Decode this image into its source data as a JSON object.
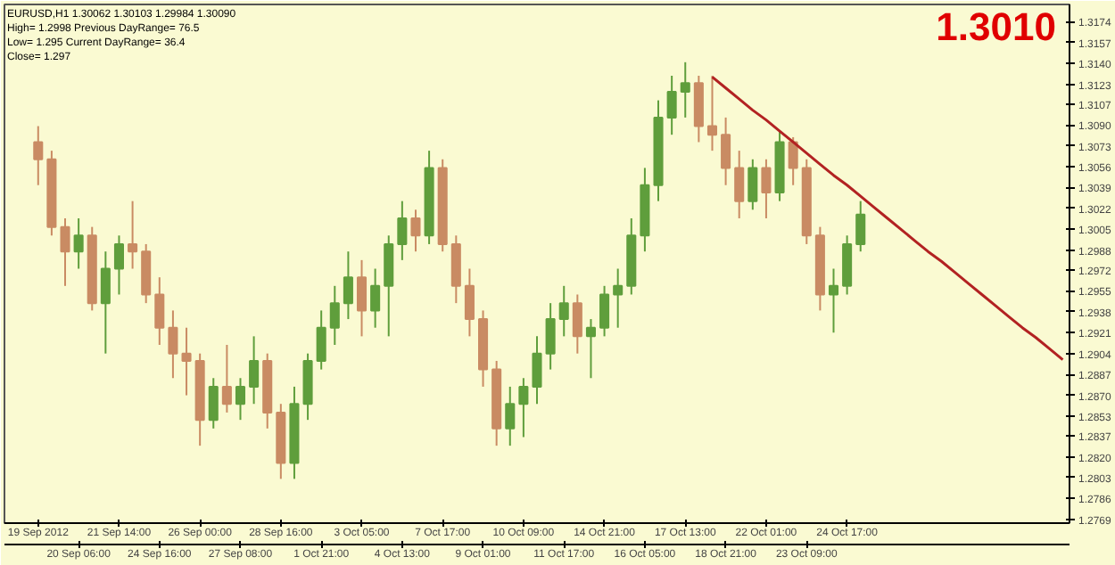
{
  "chart_data": {
    "type": "candlestick",
    "title": "1.3010",
    "annotations": [
      "EURUSD,H1 1.30062 1.30103 1.29984 1.30090",
      "High= 1.2998 Previous DayRange= 76.5",
      "Low= 1.295 Current DayRange= 36.4",
      "Close= 1.297"
    ],
    "categories": [
      "19 Sep 2012",
      null,
      null,
      "20 Sep 06:00",
      null,
      null,
      "21 Sep 14:00",
      null,
      null,
      "24 Sep 16:00",
      null,
      null,
      "26 Sep 00:00",
      null,
      null,
      "27 Sep 08:00",
      null,
      null,
      "28 Sep 16:00",
      null,
      null,
      "1 Oct 21:00",
      null,
      null,
      "3 Oct 05:00",
      null,
      null,
      "4 Oct 13:00",
      null,
      null,
      "7 Oct 17:00",
      null,
      null,
      "9 Oct 01:00",
      null,
      null,
      "10 Oct 09:00",
      null,
      null,
      "11 Oct 17:00",
      null,
      null,
      "14 Oct 21:00",
      null,
      null,
      "16 Oct 05:00",
      null,
      null,
      "17 Oct 13:00",
      null,
      null,
      "18 Oct 21:00",
      null,
      null,
      "22 Oct 01:00",
      null,
      null,
      "23 Oct 09:00",
      null,
      null,
      "24 Oct 17:00",
      null,
      null,
      null,
      null,
      null,
      null,
      null,
      null,
      null,
      null,
      null,
      null,
      null,
      null,
      null,
      null
    ],
    "series": [
      {
        "type": "candlestick",
        "colors": [
          "#c98b63",
          "#c98b63",
          "#c98b63",
          "#5f9e3c",
          "#c98b63",
          "#5f9e3c",
          "#5f9e3c",
          "#c98b63",
          "#c98b63",
          "#c98b63",
          "#c98b63",
          "#c98b63",
          "#c98b63",
          "#5f9e3c",
          "#c98b63",
          "#5f9e3c",
          "#5f9e3c",
          "#c98b63",
          "#c98b63",
          "#5f9e3c",
          "#5f9e3c",
          "#5f9e3c",
          "#5f9e3c",
          "#5f9e3c",
          "#c98b63",
          "#5f9e3c",
          "#5f9e3c",
          "#5f9e3c",
          "#c98b63",
          "#5f9e3c",
          "#c98b63",
          "#c98b63",
          "#c98b63",
          "#c98b63",
          "#c98b63",
          "#5f9e3c",
          "#5f9e3c",
          "#5f9e3c",
          "#5f9e3c",
          "#5f9e3c",
          "#c98b63",
          "#5f9e3c",
          "#5f9e3c",
          "#5f9e3c",
          "#5f9e3c",
          "#5f9e3c",
          "#5f9e3c",
          "#5f9e3c",
          "#5f9e3c",
          "#c98b63",
          "#c98b63",
          "#c98b63",
          "#c98b63",
          "#5f9e3c",
          "#c98b63",
          "#5f9e3c",
          "#c98b63",
          "#c98b63",
          "#c98b63",
          "#5f9e3c",
          "#5f9e3c",
          "#5f9e3c",
          null,
          null,
          null,
          null,
          null,
          null,
          null,
          null,
          null,
          null,
          null,
          null,
          null,
          null,
          null
        ],
        "ohlc": [
          [
            1.3076,
            1.3089,
            1.3041,
            1.3062
          ],
          [
            1.3062,
            1.3069,
            1.3,
            1.3007
          ],
          [
            1.3007,
            1.3014,
            1.2959,
            1.2987
          ],
          [
            1.2987,
            1.3014,
            1.2973,
            1.3
          ],
          [
            1.3,
            1.3007,
            1.2939,
            1.2945
          ],
          [
            1.2945,
            1.2987,
            1.2904,
            1.2973
          ],
          [
            1.2973,
            1.3,
            1.2952,
            1.2993
          ],
          [
            1.2993,
            1.3028,
            1.2973,
            1.2987
          ],
          [
            1.2987,
            1.2993,
            1.2945,
            1.2952
          ],
          [
            1.2952,
            1.2966,
            1.2911,
            1.2925
          ],
          [
            1.2925,
            1.2939,
            1.2884,
            1.2904
          ],
          [
            1.2904,
            1.2925,
            1.287,
            1.2898
          ],
          [
            1.2898,
            1.2904,
            1.2829,
            1.285
          ],
          [
            1.285,
            1.2884,
            1.2843,
            1.2877
          ],
          [
            1.2877,
            1.2911,
            1.2856,
            1.2863
          ],
          [
            1.2863,
            1.2884,
            1.285,
            1.2877
          ],
          [
            1.2877,
            1.2918,
            1.2863,
            1.2898
          ],
          [
            1.2898,
            1.2904,
            1.2843,
            1.2856
          ],
          [
            1.2856,
            1.2863,
            1.2802,
            1.2815
          ],
          [
            1.2815,
            1.2877,
            1.2802,
            1.2863
          ],
          [
            1.2863,
            1.2904,
            1.285,
            1.2898
          ],
          [
            1.2898,
            1.2939,
            1.2891,
            1.2925
          ],
          [
            1.2925,
            1.2959,
            1.2911,
            1.2945
          ],
          [
            1.2945,
            1.2987,
            1.2932,
            1.2966
          ],
          [
            1.2966,
            1.298,
            1.2918,
            1.2939
          ],
          [
            1.2939,
            1.2973,
            1.2925,
            1.2959
          ],
          [
            1.2959,
            1.3,
            1.2918,
            1.2993
          ],
          [
            1.2993,
            1.3028,
            1.298,
            1.3014
          ],
          [
            1.3014,
            1.3021,
            1.2987,
            1.3
          ],
          [
            1.3,
            1.3069,
            1.2993,
            1.3055
          ],
          [
            1.3055,
            1.3062,
            1.2987,
            1.2993
          ],
          [
            1.2993,
            1.3,
            1.2945,
            1.2959
          ],
          [
            1.2959,
            1.2973,
            1.2918,
            1.2932
          ],
          [
            1.2932,
            1.2939,
            1.2877,
            1.2891
          ],
          [
            1.2891,
            1.2898,
            1.2829,
            1.2843
          ],
          [
            1.2843,
            1.2877,
            1.2829,
            1.2863
          ],
          [
            1.2863,
            1.2884,
            1.2836,
            1.2877
          ],
          [
            1.2877,
            1.2918,
            1.2863,
            1.2904
          ],
          [
            1.2904,
            1.2945,
            1.2891,
            1.2932
          ],
          [
            1.2932,
            1.2959,
            1.2918,
            1.2945
          ],
          [
            1.2945,
            1.2952,
            1.2904,
            1.2918
          ],
          [
            1.2918,
            1.2932,
            1.2884,
            1.2925
          ],
          [
            1.2925,
            1.2959,
            1.2918,
            1.2952
          ],
          [
            1.2952,
            1.2973,
            1.2925,
            1.2959
          ],
          [
            1.2959,
            1.3014,
            1.2952,
            1.3
          ],
          [
            1.3,
            1.3055,
            1.2987,
            1.3041
          ],
          [
            1.3041,
            1.311,
            1.3028,
            1.3096
          ],
          [
            1.3096,
            1.313,
            1.3082,
            1.3117
          ],
          [
            1.3117,
            1.3141,
            1.3096,
            1.3124
          ],
          [
            1.3124,
            1.313,
            1.3076,
            1.3089
          ],
          [
            1.3089,
            1.313,
            1.3069,
            1.3082
          ],
          [
            1.3082,
            1.3096,
            1.3041,
            1.3055
          ],
          [
            1.3055,
            1.3069,
            1.3014,
            1.3028
          ],
          [
            1.3028,
            1.3062,
            1.3021,
            1.3055
          ],
          [
            1.3055,
            1.3062,
            1.3014,
            1.3035
          ],
          [
            1.3035,
            1.3085,
            1.3028,
            1.3076
          ],
          [
            1.3076,
            1.308,
            1.3041,
            1.3055
          ],
          [
            1.3055,
            1.3062,
            1.2993,
            1.3
          ],
          [
            1.3,
            1.3007,
            1.2939,
            1.2952
          ],
          [
            1.2952,
            1.2973,
            1.2921,
            1.2959
          ],
          [
            1.2959,
            1.3,
            1.2952,
            1.2993
          ],
          [
            1.2993,
            1.3028,
            1.2987,
            1.3017
          ],
          null,
          null,
          null,
          null,
          null,
          null,
          null,
          null,
          null,
          null,
          null,
          null,
          null,
          null,
          null
        ]
      },
      {
        "type": "line",
        "color": "#b22222",
        "values": [
          null,
          null,
          null,
          null,
          null,
          null,
          null,
          null,
          null,
          null,
          null,
          null,
          null,
          null,
          null,
          null,
          null,
          null,
          null,
          null,
          null,
          null,
          null,
          null,
          null,
          null,
          null,
          null,
          null,
          null,
          null,
          null,
          null,
          null,
          null,
          null,
          null,
          null,
          null,
          null,
          null,
          null,
          null,
          null,
          null,
          null,
          null,
          null,
          null,
          null,
          1.3129,
          1.312,
          1.3111,
          1.3102,
          1.3094,
          1.3085,
          1.3076,
          1.3067,
          1.3058,
          1.3049,
          1.3041,
          1.3032,
          1.3023,
          1.3014,
          1.3005,
          1.2996,
          1.2987,
          1.2979,
          1.297,
          1.2961,
          1.2952,
          1.2943,
          1.2934,
          1.2925,
          1.2917,
          1.2908,
          1.2899
        ]
      }
    ],
    "ylim": [
      1.2766,
      1.3188
    ],
    "yticks": [
      1.2769,
      1.2786,
      1.2803,
      {
        "value": 1.282,
        "label": "1.2820"
      },
      1.2837,
      1.2853,
      {
        "value": 1.287,
        "label": "1.2870"
      },
      1.2887,
      1.2904,
      1.2921,
      1.2938,
      1.2955,
      1.2972,
      1.2988,
      1.3005,
      1.3022,
      1.3039,
      1.3056,
      1.3073,
      {
        "value": 1.309,
        "label": "1.3090"
      },
      1.3107,
      1.3123,
      {
        "value": 1.314,
        "label": "1.3140"
      },
      1.3157,
      1.3174
    ],
    "grid": false
  }
}
